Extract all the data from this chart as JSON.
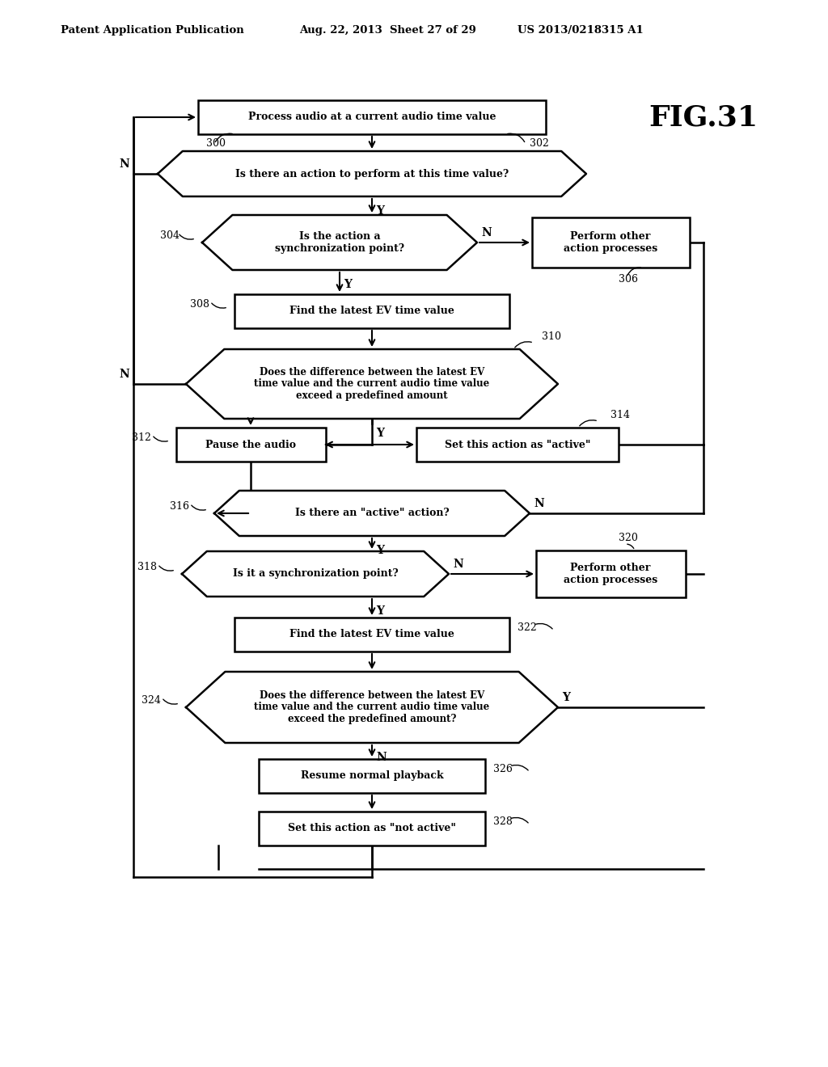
{
  "title_header": "Patent Application Publication",
  "date_header": "Aug. 22, 2013  Sheet 27 of 29",
  "patent_header": "US 2013/0218315 A1",
  "fig_label": "FIG.31",
  "bg_color": "#ffffff",
  "line_color": "#000000"
}
